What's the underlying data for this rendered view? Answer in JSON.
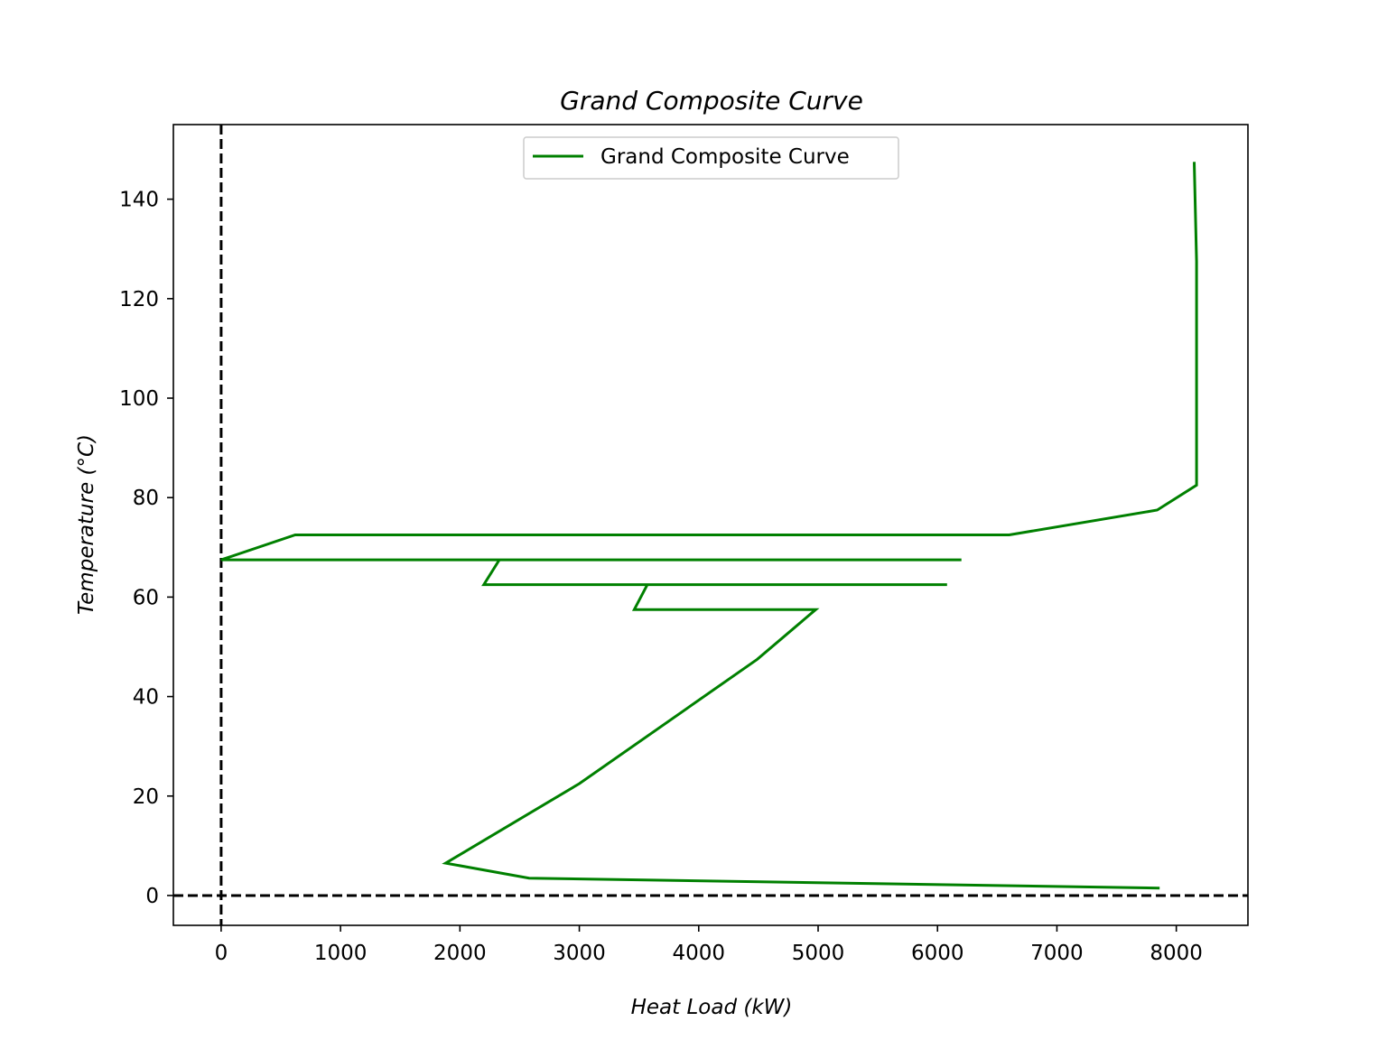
{
  "chart_data": {
    "type": "line",
    "title": "Grand Composite Curve",
    "xlabel": "Heat Load (kW)",
    "ylabel": "Temperature (°C)",
    "xlim": [
      -400,
      8600
    ],
    "ylim": [
      -6,
      155
    ],
    "xticks": [
      0,
      1000,
      2000,
      3000,
      4000,
      5000,
      6000,
      7000,
      8000
    ],
    "yticks": [
      0,
      20,
      40,
      60,
      80,
      100,
      120,
      140
    ],
    "grid": false,
    "legend": {
      "position": "top-center",
      "entries": [
        "Grand Composite Curve"
      ]
    },
    "reference_lines": [
      {
        "orientation": "vertical",
        "x": 0,
        "style": "dashed",
        "color": "#000000"
      },
      {
        "orientation": "horizontal",
        "y": 0,
        "style": "dashed",
        "color": "#000000"
      }
    ],
    "series": [
      {
        "name": "Grand Composite Curve",
        "color": "#008000",
        "points": [
          [
            8150,
            147.5
          ],
          [
            8170,
            127.5
          ],
          [
            8170,
            82.5
          ],
          [
            7840,
            77.5
          ],
          [
            6600,
            72.5
          ],
          [
            620,
            72.5
          ],
          [
            0,
            67.5
          ],
          [
            6200,
            67.5
          ],
          [
            2330,
            67.5
          ],
          [
            2200,
            62.5
          ],
          [
            6080,
            62.5
          ],
          [
            3570,
            62.5
          ],
          [
            3460,
            57.5
          ],
          [
            4980,
            57.5
          ],
          [
            4490,
            47.5
          ],
          [
            3000,
            22.5
          ],
          [
            1880,
            6.5
          ],
          [
            2580,
            3.5
          ],
          [
            7860,
            1.5
          ]
        ]
      }
    ]
  }
}
